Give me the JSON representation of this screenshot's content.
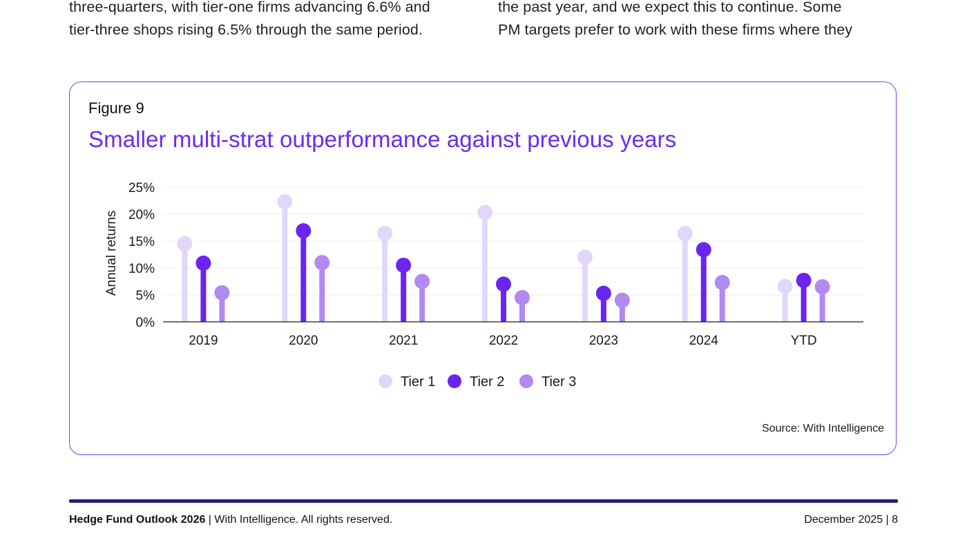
{
  "body_text": {
    "left_lines": [
      "three-quarters, with tier-one firms advancing 6.6% and",
      "tier-three shops rising 6.5% through the same period."
    ],
    "right_lines": [
      "the past year, and we expect this to continue. Some",
      "PM targets prefer to work with these firms where they"
    ]
  },
  "figure": {
    "label": "Figure 9",
    "title": "Smaller multi-strat outperformance against previous years",
    "source": "Source: With Intelligence"
  },
  "chart_data": {
    "type": "bar",
    "style": "lollipop",
    "title": "Smaller multi-strat outperformance against previous years",
    "categories": [
      "2019",
      "2020",
      "2021",
      "2022",
      "2023",
      "2024",
      "YTD"
    ],
    "series": [
      {
        "name": "Tier 1",
        "color": "#e2d7fb",
        "values": [
          14.5,
          22.3,
          16.4,
          20.3,
          12.0,
          16.4,
          6.6
        ]
      },
      {
        "name": "Tier 2",
        "color": "#6a25f0",
        "values": [
          10.9,
          16.9,
          10.5,
          7.0,
          5.3,
          13.4,
          7.7
        ]
      },
      {
        "name": "Tier 3",
        "color": "#b08af0",
        "values": [
          5.4,
          11.0,
          7.5,
          4.5,
          4.0,
          7.3,
          6.5
        ]
      }
    ],
    "ylabel": "Annual returns",
    "xlabel": "",
    "ylim": [
      0,
      25
    ],
    "yticks": [
      "0%",
      "5%",
      "10%",
      "15%",
      "20%",
      "25%"
    ],
    "ytick_values": [
      0,
      5,
      10,
      15,
      20,
      25
    ],
    "grid": true,
    "legend": "bottom-center"
  },
  "footer": {
    "title": "Hedge Fund Outlook 2026",
    "separator": " | ",
    "rights": "With Intelligence. All rights reserved.",
    "date_page": "December 2025 | 8"
  }
}
